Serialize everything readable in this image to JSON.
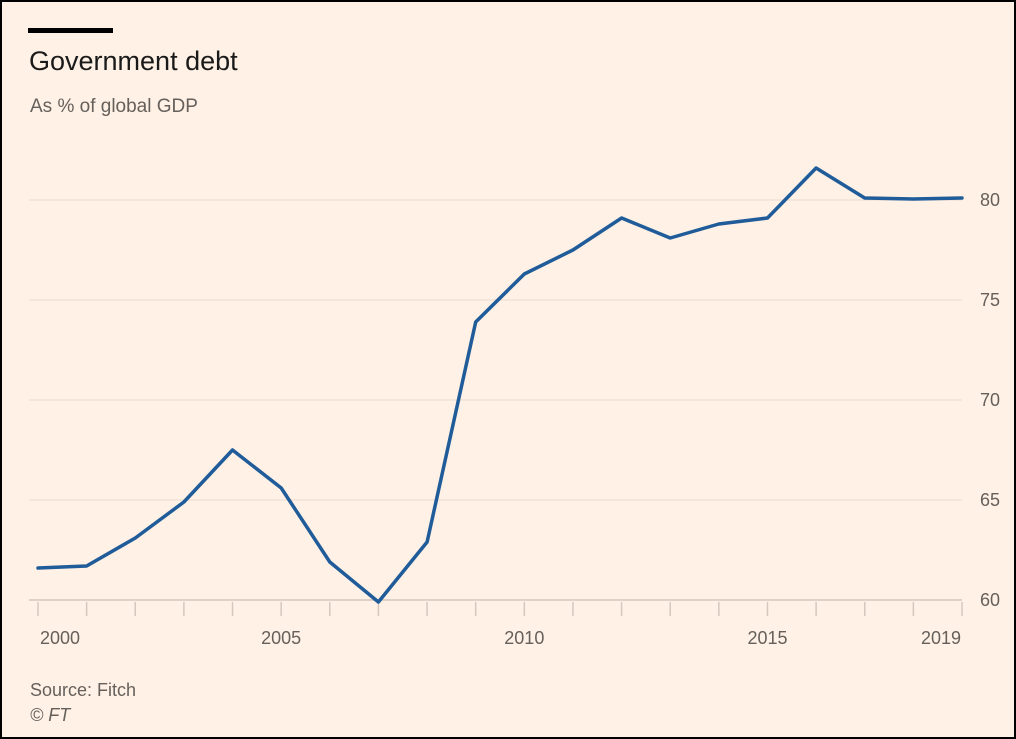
{
  "header": {
    "title": "Government debt",
    "subtitle": "As % of global GDP"
  },
  "footer": {
    "source": "Source: Fitch",
    "credit": "© FT"
  },
  "colors": {
    "background": "#fff1e5",
    "line": "#1f5c99",
    "gridline": "#e9dcd1",
    "text": "#66605c"
  },
  "chart_data": {
    "type": "line",
    "title": "Government debt",
    "subtitle": "As % of global GDP",
    "xlabel": "",
    "ylabel": "",
    "x": [
      2000,
      2001,
      2002,
      2003,
      2004,
      2005,
      2006,
      2007,
      2008,
      2009,
      2010,
      2011,
      2012,
      2013,
      2014,
      2015,
      2016,
      2017,
      2018,
      2019
    ],
    "series": [
      {
        "values": [
          61.6,
          61.7,
          63.1,
          64.9,
          67.5,
          65.6,
          61.9,
          59.9,
          62.9,
          73.9,
          76.3,
          77.5,
          79.1,
          78.1,
          78.8,
          79.1,
          81.6,
          80.1,
          80.05,
          80.1
        ]
      }
    ],
    "xticks": [
      "2000",
      "2005",
      "2010",
      "2015",
      "2019"
    ],
    "yticks": [
      "60",
      "65",
      "70",
      "75",
      "80"
    ],
    "xlim": [
      2000,
      2019
    ],
    "ylim": [
      60,
      82
    ],
    "grid": true,
    "y_axis_side": "right",
    "legend": "none"
  }
}
